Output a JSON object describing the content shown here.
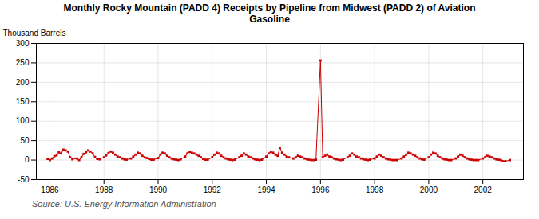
{
  "chart_data": {
    "type": "line",
    "title": "Monthly Rocky Mountain (PADD 4) Receipts by Pipeline from Midwest (PADD 2) of Aviation\nGasoline",
    "ylabel": "Thousand Barrels",
    "source": "Source: U.S. Energy Information Administration",
    "color": "#cc0000",
    "marker": "square",
    "grid": true,
    "xlim": [
      1985.5,
      2003.5
    ],
    "xticks": [
      1986,
      1988,
      1990,
      1992,
      1994,
      1996,
      1998,
      2000,
      2002
    ],
    "ylim": [
      -50,
      300
    ],
    "yticks": [
      -50,
      0,
      50,
      100,
      150,
      200,
      250,
      300
    ],
    "x": [
      1985.917,
      1986.0,
      1986.083,
      1986.167,
      1986.25,
      1986.333,
      1986.417,
      1986.5,
      1986.583,
      1986.667,
      1986.75,
      1986.833,
      1987.0,
      1987.083,
      1987.167,
      1987.25,
      1987.333,
      1987.417,
      1987.5,
      1987.583,
      1987.667,
      1987.75,
      1987.833,
      1988.0,
      1988.083,
      1988.167,
      1988.25,
      1988.333,
      1988.417,
      1988.5,
      1988.583,
      1988.667,
      1988.75,
      1988.833,
      1989.0,
      1989.083,
      1989.167,
      1989.25,
      1989.333,
      1989.417,
      1989.5,
      1989.583,
      1989.667,
      1989.75,
      1989.833,
      1990.0,
      1990.083,
      1990.167,
      1990.25,
      1990.333,
      1990.417,
      1990.5,
      1990.583,
      1990.667,
      1990.75,
      1990.833,
      1991.0,
      1991.083,
      1991.167,
      1991.25,
      1991.333,
      1991.417,
      1991.5,
      1991.583,
      1991.667,
      1991.75,
      1991.833,
      1992.0,
      1992.083,
      1992.167,
      1992.25,
      1992.333,
      1992.417,
      1992.5,
      1992.583,
      1992.667,
      1992.75,
      1992.833,
      1993.0,
      1993.083,
      1993.167,
      1993.25,
      1993.333,
      1993.417,
      1993.5,
      1993.583,
      1993.667,
      1993.75,
      1993.833,
      1994.0,
      1994.083,
      1994.167,
      1994.25,
      1994.333,
      1994.417,
      1994.5,
      1994.583,
      1994.667,
      1994.75,
      1994.833,
      1995.0,
      1995.083,
      1995.167,
      1995.25,
      1995.333,
      1995.417,
      1995.5,
      1995.583,
      1995.667,
      1995.75,
      1995.833,
      1996.0,
      1996.083,
      1996.167,
      1996.25,
      1996.333,
      1996.417,
      1996.5,
      1996.583,
      1996.667,
      1996.75,
      1996.833,
      1997.0,
      1997.083,
      1997.167,
      1997.25,
      1997.333,
      1997.417,
      1997.5,
      1997.583,
      1997.667,
      1997.75,
      1997.833,
      1998.0,
      1998.083,
      1998.167,
      1998.25,
      1998.333,
      1998.417,
      1998.5,
      1998.583,
      1998.667,
      1998.75,
      1998.833,
      1999.0,
      1999.083,
      1999.167,
      1999.25,
      1999.333,
      1999.417,
      1999.5,
      1999.583,
      1999.667,
      1999.75,
      1999.833,
      2000.0,
      2000.083,
      2000.167,
      2000.25,
      2000.333,
      2000.417,
      2000.5,
      2000.583,
      2000.667,
      2000.75,
      2000.833,
      2001.0,
      2001.083,
      2001.167,
      2001.25,
      2001.333,
      2001.417,
      2001.5,
      2001.583,
      2001.667,
      2001.75,
      2001.833,
      2002.0,
      2002.083,
      2002.167,
      2002.25,
      2002.333,
      2002.417,
      2002.5,
      2002.583,
      2002.667,
      2002.75,
      2002.833,
      2003.0
    ],
    "values": [
      3,
      0,
      4,
      10,
      12,
      20,
      17,
      27,
      25,
      22,
      7,
      2,
      4,
      0,
      7,
      16,
      20,
      25,
      22,
      17,
      8,
      3,
      2,
      7,
      12,
      18,
      22,
      19,
      14,
      9,
      7,
      4,
      2,
      1,
      4,
      9,
      14,
      19,
      17,
      11,
      7,
      5,
      3,
      1,
      1,
      5,
      14,
      19,
      17,
      11,
      7,
      4,
      2,
      1,
      0,
      2,
      9,
      17,
      21,
      19,
      17,
      14,
      11,
      7,
      3,
      1,
      1,
      7,
      14,
      19,
      17,
      11,
      7,
      4,
      2,
      1,
      0,
      1,
      7,
      11,
      17,
      14,
      9,
      7,
      4,
      2,
      1,
      0,
      1,
      9,
      17,
      21,
      19,
      14,
      11,
      32,
      19,
      14,
      9,
      7,
      4,
      7,
      11,
      9,
      7,
      4,
      2,
      1,
      0,
      0,
      1,
      256,
      7,
      11,
      14,
      9,
      7,
      4,
      2,
      1,
      0,
      1,
      7,
      11,
      17,
      14,
      9,
      7,
      4,
      2,
      1,
      0,
      1,
      4,
      9,
      14,
      11,
      7,
      4,
      2,
      1,
      0,
      0,
      0,
      4,
      9,
      14,
      19,
      17,
      14,
      11,
      7,
      4,
      2,
      1,
      7,
      14,
      19,
      17,
      11,
      7,
      4,
      2,
      1,
      0,
      0,
      4,
      9,
      14,
      11,
      7,
      4,
      2,
      1,
      0,
      0,
      0,
      4,
      7,
      11,
      9,
      7,
      4,
      2,
      1,
      0,
      -3,
      -3,
      0
    ]
  }
}
